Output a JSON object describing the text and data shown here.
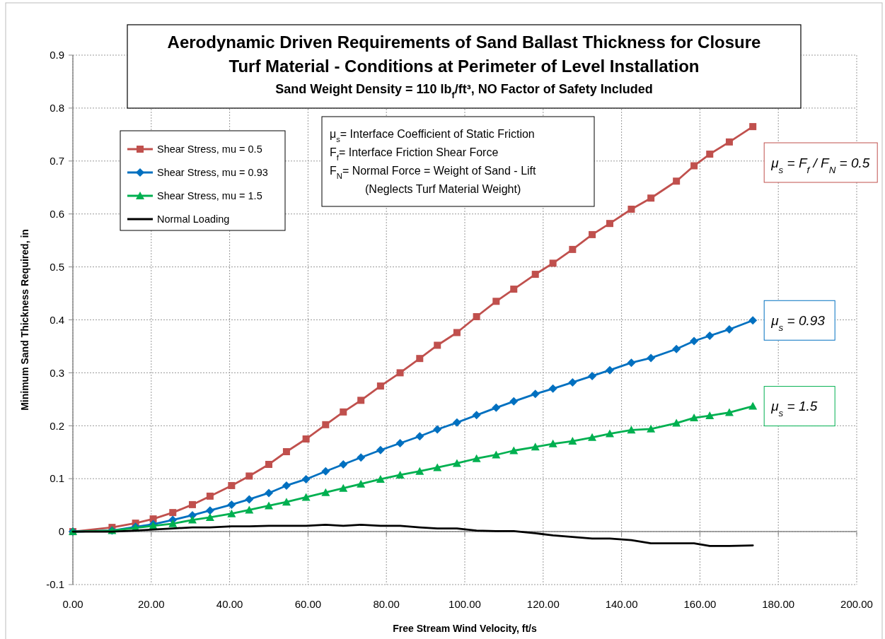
{
  "chart_data": {
    "type": "line",
    "title": "Aerodynamic Driven Requirements  of Sand Ballast Thickness for Closure Turf Material - Conditions at Perimeter of Level Installation",
    "subtitle": "Sand Weight Density = 110 lb$_{f}$/ft³, NO Factor of Safety Included",
    "xlabel": "Free Stream Wind Velocity, ft/s",
    "ylabel": "Minimum Sand Thickness  Required, in",
    "x": [
      0,
      10,
      16,
      20.5,
      25.5,
      30.5,
      35,
      40.5,
      45,
      50,
      54.5,
      59.5,
      64.5,
      69,
      73.5,
      78.5,
      83.5,
      88.5,
      93,
      98,
      103,
      108,
      112.5,
      118,
      122.5,
      127.5,
      132.5,
      137,
      142.5,
      147.5,
      154,
      158.5,
      162.5,
      167.5,
      173.5
    ],
    "series": [
      {
        "name": "Shear Stress, mu = 0.5",
        "color": "#c0504d",
        "marker": "square",
        "values": [
          0,
          0.008,
          0.016,
          0.024,
          0.036,
          0.051,
          0.067,
          0.087,
          0.105,
          0.127,
          0.151,
          0.175,
          0.202,
          0.226,
          0.248,
          0.275,
          0.3,
          0.327,
          0.352,
          0.376,
          0.406,
          0.435,
          0.458,
          0.486,
          0.507,
          0.533,
          0.561,
          0.582,
          0.609,
          0.63,
          0.662,
          0.691,
          0.713,
          0.736,
          0.765
        ]
      },
      {
        "name": "Shear Stress, mu = 0.93",
        "color": "#0070c0",
        "marker": "diamond",
        "values": [
          0,
          0.002,
          0.009,
          0.014,
          0.022,
          0.031,
          0.04,
          0.051,
          0.061,
          0.073,
          0.087,
          0.099,
          0.114,
          0.127,
          0.14,
          0.154,
          0.167,
          0.18,
          0.193,
          0.206,
          0.22,
          0.234,
          0.246,
          0.26,
          0.27,
          0.282,
          0.294,
          0.305,
          0.319,
          0.328,
          0.345,
          0.36,
          0.37,
          0.382,
          0.399
        ]
      },
      {
        "name": "Shear Stress, mu = 1.5",
        "color": "#00b050",
        "marker": "triangle",
        "values": [
          0,
          0.002,
          0.007,
          0.011,
          0.015,
          0.022,
          0.027,
          0.034,
          0.041,
          0.049,
          0.056,
          0.065,
          0.074,
          0.082,
          0.09,
          0.099,
          0.107,
          0.114,
          0.121,
          0.129,
          0.138,
          0.145,
          0.153,
          0.16,
          0.166,
          0.171,
          0.178,
          0.185,
          0.192,
          0.194,
          0.205,
          0.215,
          0.219,
          0.225,
          0.237
        ]
      },
      {
        "name": "Normal Loading",
        "color": "#000000",
        "marker": "none",
        "values": [
          0,
          0,
          0.002,
          0.004,
          0.006,
          0.008,
          0.008,
          0.01,
          0.01,
          0.011,
          0.011,
          0.011,
          0.013,
          0.011,
          0.013,
          0.011,
          0.011,
          0.008,
          0.006,
          0.006,
          0.002,
          0.001,
          0.001,
          -0.003,
          -0.007,
          -0.01,
          -0.013,
          -0.013,
          -0.016,
          -0.022,
          -0.022,
          -0.022,
          -0.027,
          -0.027,
          -0.026
        ]
      }
    ],
    "xlim": [
      0,
      200
    ],
    "xticks": [
      {
        "value": 0,
        "label": "0.00"
      },
      {
        "value": 20,
        "label": "20.00"
      },
      {
        "value": 40,
        "label": "40.00"
      },
      {
        "value": 60,
        "label": "60.00"
      },
      {
        "value": 80,
        "label": "80.00"
      },
      {
        "value": 100,
        "label": "100.00"
      },
      {
        "value": 120,
        "label": "120.00"
      },
      {
        "value": 140,
        "label": "140.00"
      },
      {
        "value": 160,
        "label": "160.00"
      },
      {
        "value": 180,
        "label": "180.00"
      },
      {
        "value": 200,
        "label": "200.00"
      }
    ],
    "ylim": [
      -0.1,
      0.9
    ],
    "yticks": [
      -0.1,
      0,
      0.1,
      0.2,
      0.3,
      0.4,
      0.5,
      0.6,
      0.7,
      0.8,
      0.9
    ],
    "grid": true,
    "legend": "top left",
    "line_style": "solid",
    "annotations": [
      "μ$_{s}$= Interface Coefficient of Static Friction",
      "F$_{f}$= Interface Friction Shear Force",
      "F$_{N}$= Normal Force = Weight of Sand - Lift",
      "(Neglects Turf Material Weight)",
      "μ$_{s}$ = F$_{f}$ / F$_{N}$ = 0.5",
      "μ$_{s}$ = 0.93",
      "μ$_{s}$ = 1.5"
    ]
  }
}
